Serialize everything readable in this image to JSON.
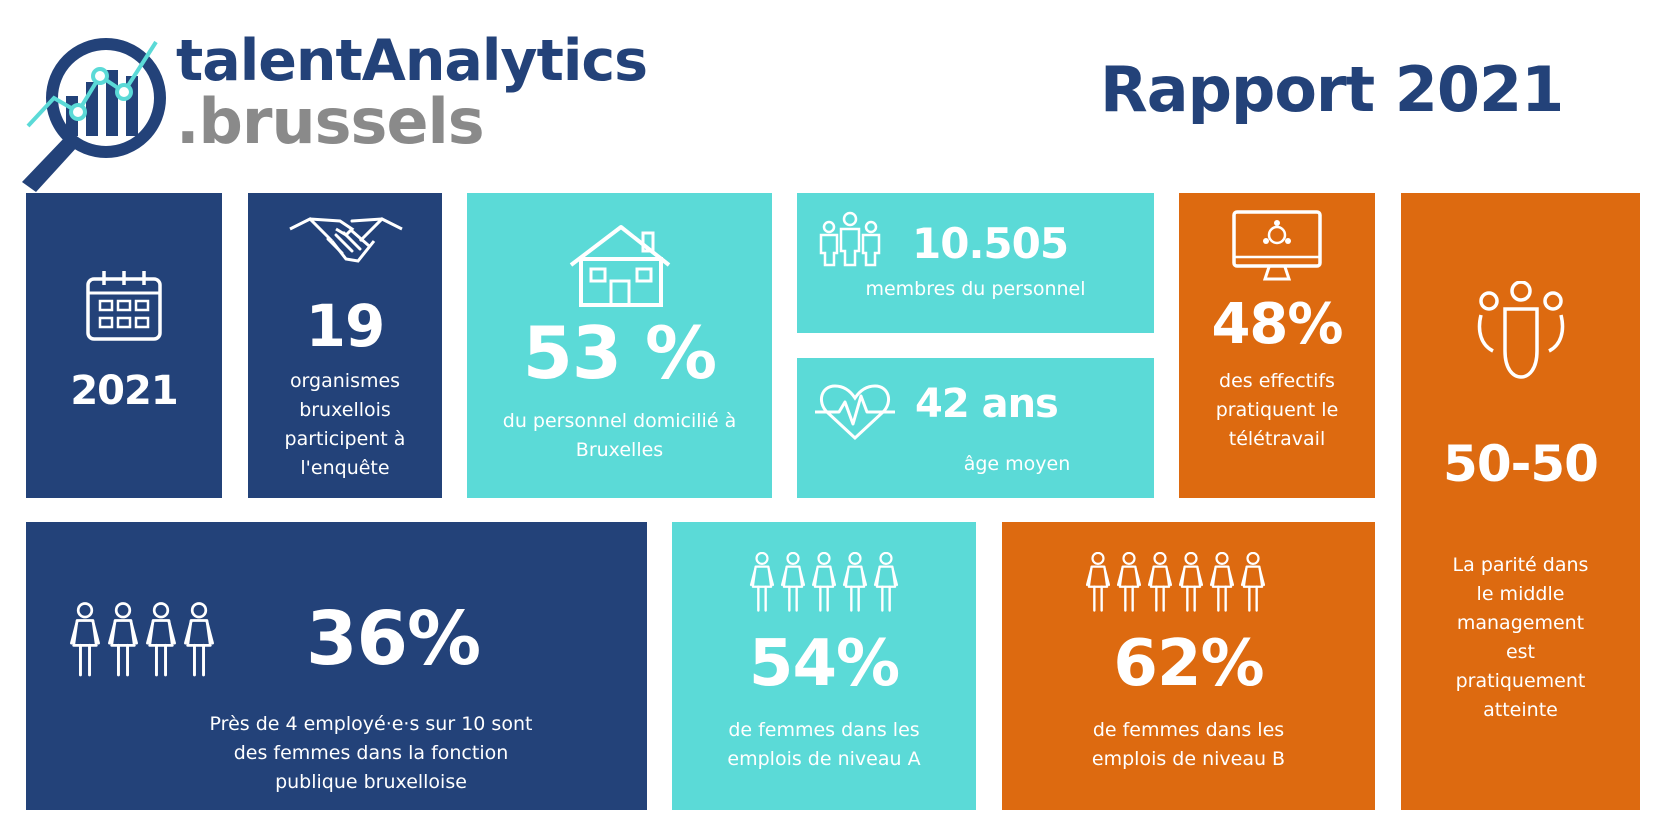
{
  "brand": {
    "line1": "talentAnalytics",
    "line2": ".brussels"
  },
  "report_title": "Rapport 2021",
  "colors": {
    "navy": "#234279",
    "cyan": "#5bdad7",
    "orange": "#dd6a10",
    "grey": "#8a8a8a"
  },
  "tiles": {
    "year": {
      "value": "2021",
      "icon": "calendar-icon"
    },
    "organisations": {
      "value": "19",
      "text": "organismes bruxellois participent à l'enquête",
      "icon": "handshake-icon"
    },
    "residence": {
      "value": "53 %",
      "text": "du personnel domicilié à Bruxelles",
      "icon": "house-icon"
    },
    "staff": {
      "value": "10.505",
      "text": "membres du personnel",
      "icon": "people-group-icon"
    },
    "age": {
      "value": "42 ans",
      "text": "âge moyen",
      "icon": "heartbeat-icon"
    },
    "telework": {
      "value": "48%",
      "text": "des effectifs pratiquent le télétravail",
      "icon": "monitor-network-icon"
    },
    "parity": {
      "value": "50-50",
      "text": "La parité dans le middle management est pratiquement atteinte",
      "icon": "people-trio-icon"
    },
    "women_total": {
      "value": "36%",
      "text": "Près de 4 employé·e·s sur 10 sont des femmes dans la fonction publique bruxelloise",
      "icon": "women-icon"
    },
    "women_level_a": {
      "value": "54%",
      "text": "de femmes dans les emplois de niveau A",
      "icon": "women-icon"
    },
    "women_level_b": {
      "value": "62%",
      "text": "de femmes dans les emplois de niveau B",
      "icon": "women-icon"
    }
  }
}
